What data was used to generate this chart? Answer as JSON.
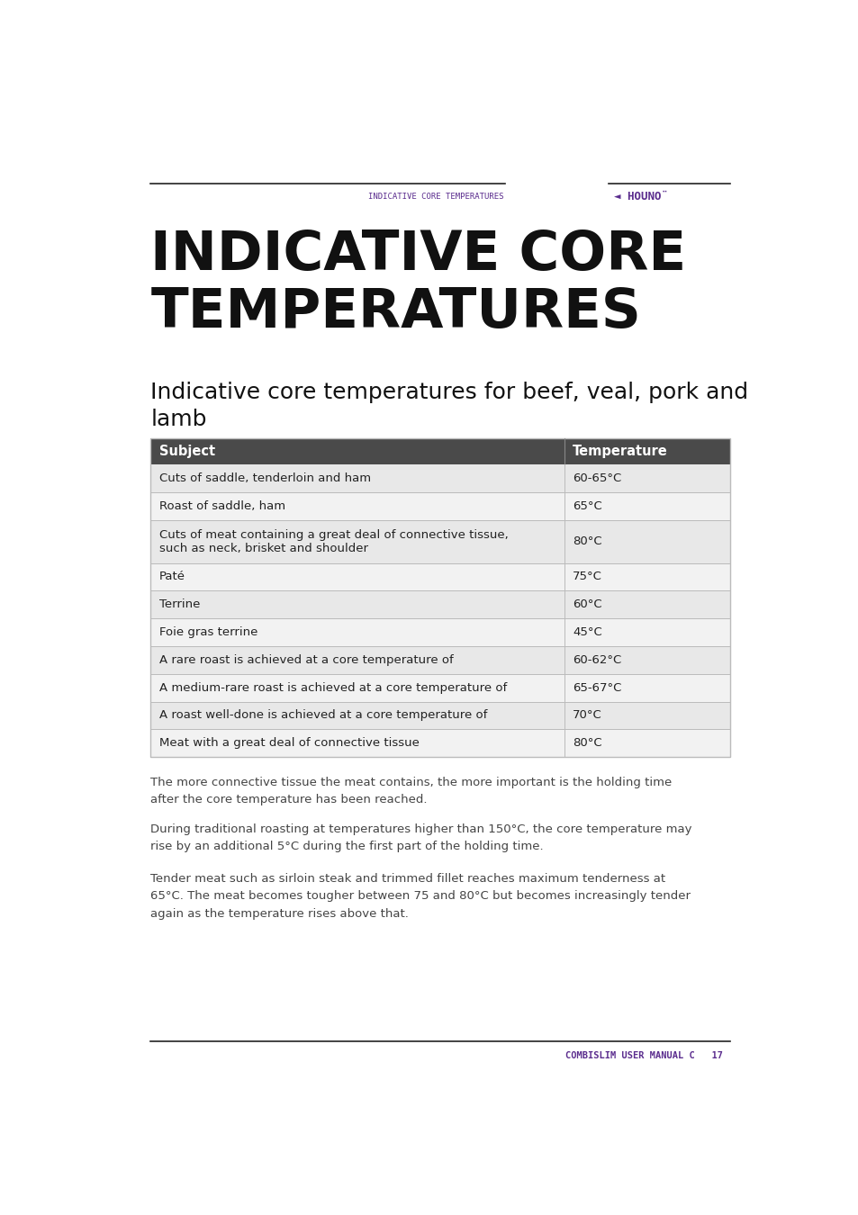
{
  "page_bg": "#ffffff",
  "header_line_color": "#222222",
  "header_text": "INDICATIVE CORE TEMPERATURES",
  "header_text_color": "#5b2d8e",
  "header_logo_color": "#5b2d8e",
  "main_title": "INDICATIVE CORE\nTEMPERATURES",
  "main_title_color": "#111111",
  "section_title": "Indicative core temperatures for beef, veal, pork and\nlamb",
  "section_title_color": "#111111",
  "table_header_bg": "#4a4a4a",
  "table_header_text_color": "#ffffff",
  "table_col1_header": "Subject",
  "table_col2_header": "Temperature",
  "table_row_bg_odd": "#e8e8e8",
  "table_row_bg_even": "#f2f2f2",
  "table_border_color": "#bbbbbb",
  "table_text_color": "#222222",
  "table_rows": [
    [
      "Cuts of saddle, tenderloin and ham",
      "60-65°C"
    ],
    [
      "Roast of saddle, ham",
      "65°C"
    ],
    [
      "Cuts of meat containing a great deal of connective tissue,\nsuch as neck, brisket and shoulder",
      "80°C"
    ],
    [
      "Paté",
      "75°C"
    ],
    [
      "Terrine",
      "60°C"
    ],
    [
      "Foie gras terrine",
      "45°C"
    ],
    [
      "A rare roast is achieved at a core temperature of",
      "60-62°C"
    ],
    [
      "A medium-rare roast is achieved at a core temperature of",
      "65-67°C"
    ],
    [
      "A roast well-done is achieved at a core temperature of",
      "70°C"
    ],
    [
      "Meat with a great deal of connective tissue",
      "80°C"
    ]
  ],
  "para1": "The more connective tissue the meat contains, the more important is the holding time\nafter the core temperature has been reached.",
  "para2": "During traditional roasting at temperatures higher than 150°C, the core temperature may\nrise by an additional 5°C during the first part of the holding time.",
  "para3": "Tender meat such as sirloin steak and trimmed fillet reaches maximum tenderness at\n65°C. The meat becomes tougher between 75 and 80°C but becomes increasingly tender\nagain as the temperature rises above that.",
  "footer_text": "COMBISLIM USER MANUAL C   17",
  "footer_text_color": "#5b2d8e",
  "footer_line_color": "#222222",
  "text_color": "#444444"
}
